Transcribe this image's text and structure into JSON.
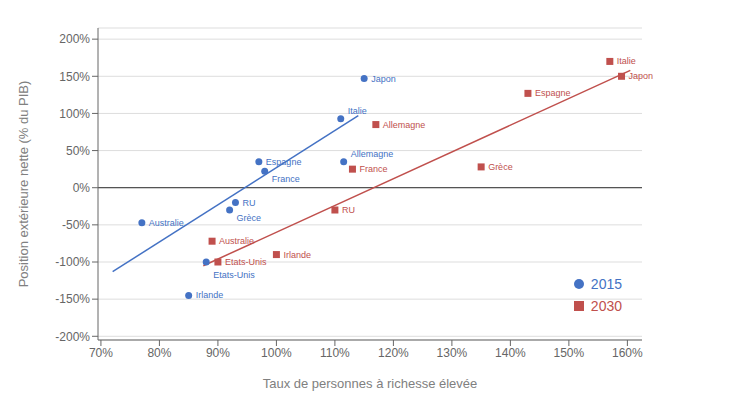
{
  "chart_data": {
    "type": "scatter",
    "xlabel": "Taux de personnes à richesse élevée",
    "ylabel": "Position extérieure nette (% du PIB)",
    "series": [
      {
        "name": "2015",
        "type": "scatter",
        "color": "#4472C4",
        "marker": "circle",
        "x": [
          0.77,
          0.85,
          0.88,
          0.92,
          0.93,
          0.97,
          0.98,
          1.11,
          1.115,
          1.15
        ],
        "values": [
          -0.47,
          -1.45,
          -1.0,
          -0.3,
          -0.2,
          0.35,
          0.22,
          0.93,
          0.35,
          1.47
        ],
        "labels": [
          "Australie",
          "Irlande",
          "Etats-Unis",
          "Grèce",
          "RU",
          "Espagne",
          "France",
          "Italie",
          "Allemagne",
          "Japon"
        ]
      },
      {
        "name": "2030",
        "type": "scatter",
        "color": "#C0504D",
        "marker": "square",
        "x": [
          0.89,
          0.9,
          1.0,
          1.1,
          1.13,
          1.17,
          1.35,
          1.43,
          1.57,
          1.59
        ],
        "values": [
          -0.72,
          -1.0,
          -0.9,
          -0.3,
          0.25,
          0.85,
          0.28,
          1.27,
          1.7,
          1.5
        ],
        "labels": [
          "Australie",
          "Etats-Unis",
          "Irlande",
          "RU",
          "France",
          "Allemagne",
          "Grèce",
          "Espagne",
          "Italie",
          "Japon"
        ]
      },
      {
        "type": "line",
        "color": "#4472C4",
        "x": [
          0.72,
          1.14
        ],
        "values": [
          -1.13,
          0.97
        ]
      },
      {
        "type": "line",
        "color": "#C0504D",
        "x": [
          0.875,
          1.605
        ],
        "values": [
          -1.05,
          1.58
        ]
      }
    ],
    "hlines": [
      0
    ],
    "xlim": [
      0.695,
      1.625
    ],
    "ylim": [
      -2.05,
      2.15
    ],
    "xticks": [
      {
        "value": 0.7,
        "label": "70%"
      },
      {
        "value": 0.8,
        "label": "80%"
      },
      {
        "value": 0.9,
        "label": "90%"
      },
      {
        "value": 1.0,
        "label": "100%"
      },
      {
        "value": 1.1,
        "label": "110%"
      },
      {
        "value": 1.2,
        "label": "120%"
      },
      {
        "value": 1.3,
        "label": "130%"
      },
      {
        "value": 1.4,
        "label": "140%"
      },
      {
        "value": 1.5,
        "label": "150%"
      },
      {
        "value": 1.6,
        "label": "160%"
      }
    ],
    "yticks": [
      {
        "value": -2.0,
        "label": "-200%"
      },
      {
        "value": -1.5,
        "label": "-150%"
      },
      {
        "value": -1.0,
        "label": "-100%"
      },
      {
        "value": -0.5,
        "label": "-50%"
      },
      {
        "value": 0.0,
        "label": "0%"
      },
      {
        "value": 0.5,
        "label": "50%"
      },
      {
        "value": 1.0,
        "label": "100%"
      },
      {
        "value": 1.5,
        "label": "150%"
      },
      {
        "value": 2.0,
        "label": "200%"
      }
    ],
    "grid": "y",
    "legend": "lower right"
  }
}
